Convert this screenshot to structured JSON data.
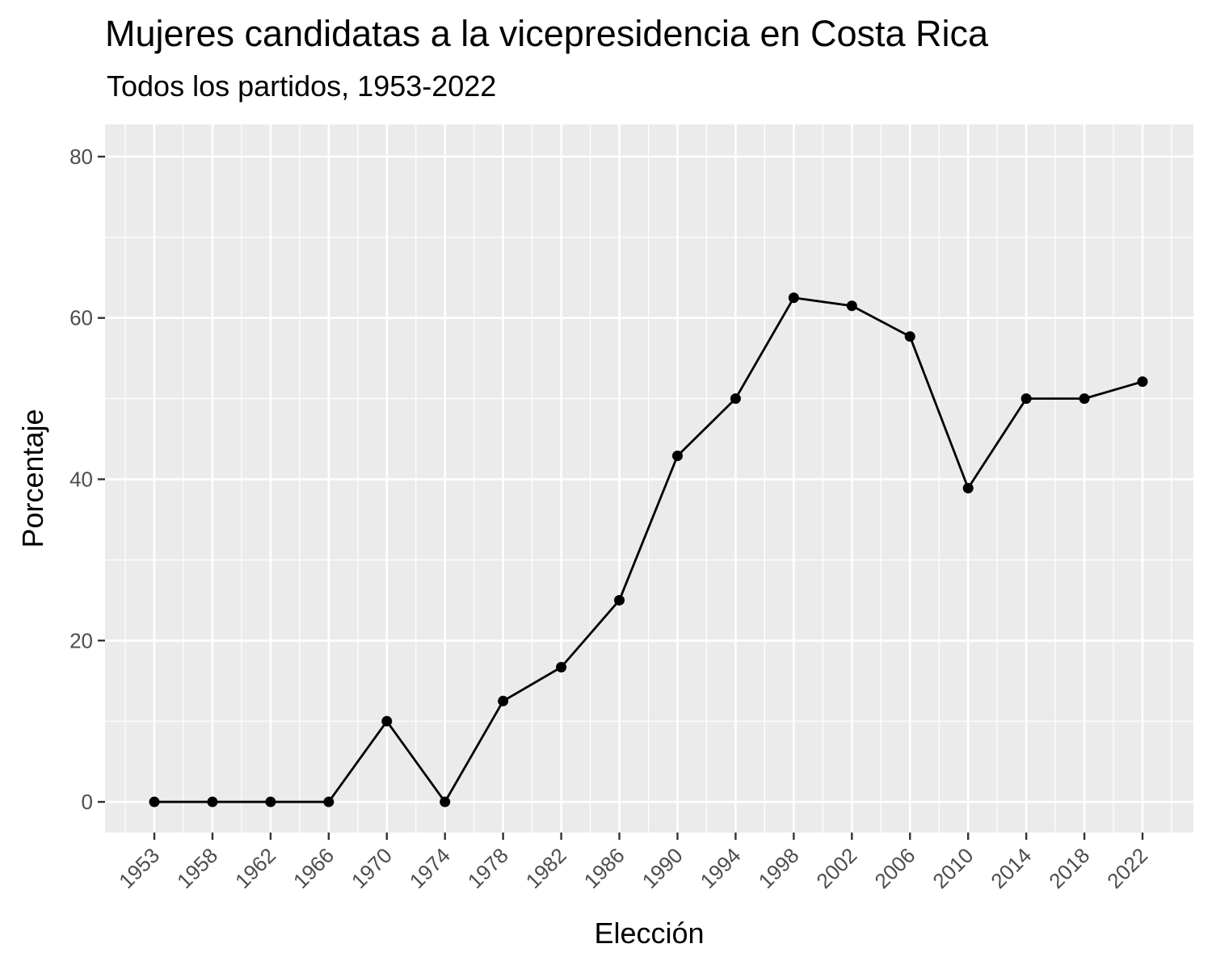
{
  "chart_data": {
    "type": "line",
    "title": "Mujeres candidatas a la vicepresidencia en Costa Rica",
    "subtitle": "Todos los partidos, 1953-2022",
    "xlabel": "Elección",
    "ylabel": "Porcentaje",
    "x": [
      1953,
      1958,
      1962,
      1966,
      1970,
      1974,
      1978,
      1982,
      1986,
      1990,
      1994,
      1998,
      2002,
      2006,
      2010,
      2014,
      2018,
      2022
    ],
    "x_tick_labels": [
      "1953",
      "1958",
      "1962",
      "1966",
      "1970",
      "1974",
      "1978",
      "1982",
      "1986",
      "1990",
      "1994",
      "1998",
      "2002",
      "2006",
      "2010",
      "2014",
      "2018",
      "2022"
    ],
    "series": [
      {
        "values": [
          0,
          0,
          0,
          0,
          10,
          0,
          12.5,
          16.7,
          25,
          42.9,
          50,
          62.5,
          61.5,
          57.7,
          38.9,
          50,
          50,
          52.1
        ]
      }
    ],
    "y_ticks": [
      0,
      20,
      40,
      60,
      80
    ],
    "y_tick_labels": [
      "0",
      "20",
      "40",
      "60",
      "80"
    ],
    "ylim": [
      -3.8,
      84
    ],
    "grid": true,
    "legend": "none",
    "colors": {
      "panel": "#EBEBEB",
      "grid": "#FFFFFF",
      "line": "#000000",
      "point": "#000000",
      "tick_text": "#4D4D4D"
    }
  }
}
